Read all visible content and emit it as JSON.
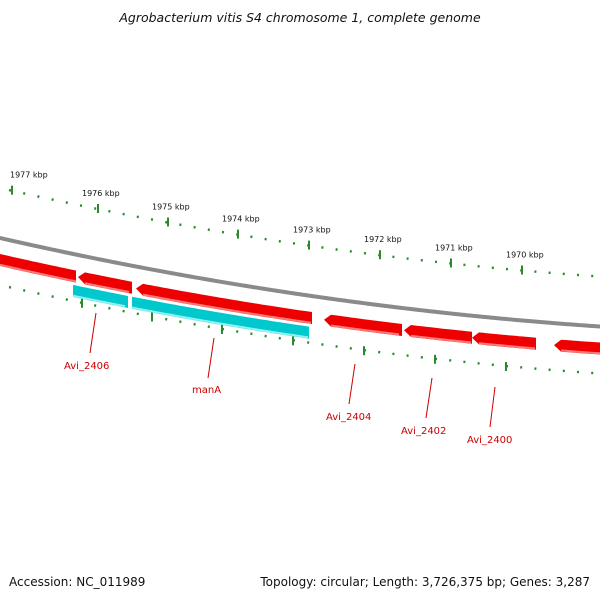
{
  "title": "Agrobacterium vitis S4 chromosome 1, complete genome",
  "footer": {
    "accession": "Accession: NC_011989",
    "summary": "Topology: circular; Length: 3,726,375 bp; Genes: 3,287"
  },
  "colors": {
    "backbone": "#8a8a8a",
    "forward_gene": "#ee0000",
    "reverse_gene_cds": "#00c8cc",
    "tick": "#2a8a2a",
    "gene_label": "#cc0000"
  },
  "ruler_labels": [
    "1977 kbp",
    "1976 kbp",
    "1975 kbp",
    "1974 kbp",
    "1973 kbp",
    "1972 kbp",
    "1971 kbp",
    "1970 kbp"
  ],
  "ruler_kbp": [
    1977,
    1976,
    1975,
    1974,
    1973,
    1972,
    1971,
    1970
  ],
  "genes": [
    {
      "name": "Avi_2406",
      "strand": "reverse",
      "type": "CDS"
    },
    {
      "name": "manA",
      "strand": "reverse",
      "type": "CDS"
    },
    {
      "name": "Avi_2404",
      "strand": "reverse",
      "type": "gene"
    },
    {
      "name": "Avi_2402",
      "strand": "reverse",
      "type": "gene"
    },
    {
      "name": "Avi_2400",
      "strand": "reverse",
      "type": "gene"
    }
  ]
}
